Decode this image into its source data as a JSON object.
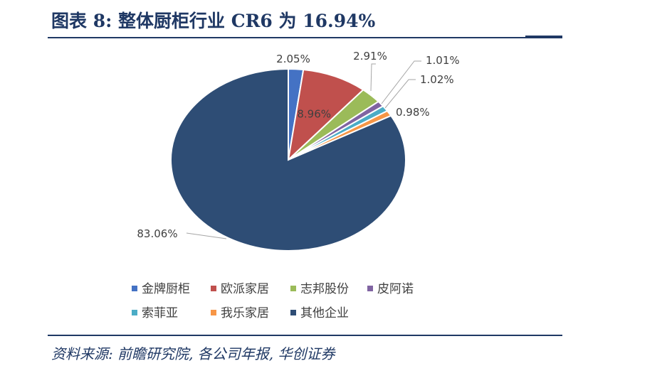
{
  "header": {
    "title": "图表 8:  整体厨柜行业 CR6 为 16.94%"
  },
  "footer": {
    "source": "资料来源: 前瞻研究院, 各公司年报, 华创证券"
  },
  "chart_data": {
    "type": "pie",
    "title": "",
    "slices": [
      {
        "name": "金牌厨柜",
        "value": 2.05,
        "label": "2.05%",
        "color": "#4472c4"
      },
      {
        "name": "欧派家居",
        "value": 8.96,
        "label": "8.96%",
        "color": "#c0504d"
      },
      {
        "name": "志邦股份",
        "value": 2.91,
        "label": "2.91%",
        "color": "#9bbb59"
      },
      {
        "name": "皮阿诺",
        "value": 1.01,
        "label": "1.01%",
        "color": "#8064a2"
      },
      {
        "name": "索菲亚",
        "value": 1.02,
        "label": "1.02%",
        "color": "#4bacc6"
      },
      {
        "name": "我乐家居",
        "value": 0.98,
        "label": "0.98%",
        "color": "#f79646"
      },
      {
        "name": "其他企业",
        "value": 83.06,
        "label": "83.06%",
        "color": "#2e4d75"
      }
    ],
    "legend_position": "bottom"
  }
}
